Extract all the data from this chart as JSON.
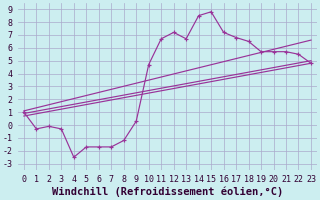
{
  "background_color": "#cceef0",
  "grid_color": "#aaaacc",
  "line_color": "#993399",
  "xlabel": "Windchill (Refroidissement éolien,°C)",
  "xlim": [
    -0.5,
    23.5
  ],
  "ylim": [
    -3.5,
    9.5
  ],
  "xtick_labels": [
    "0",
    "1",
    "2",
    "3",
    "4",
    "5",
    "6",
    "7",
    "8",
    "9",
    "10",
    "11",
    "12",
    "13",
    "14",
    "15",
    "16",
    "17",
    "18",
    "19",
    "20",
    "21",
    "22",
    "23"
  ],
  "xtick_vals": [
    0,
    1,
    2,
    3,
    4,
    5,
    6,
    7,
    8,
    9,
    10,
    11,
    12,
    13,
    14,
    15,
    16,
    17,
    18,
    19,
    20,
    21,
    22,
    23
  ],
  "ytick_vals": [
    -3,
    -2,
    -1,
    0,
    1,
    2,
    3,
    4,
    5,
    6,
    7,
    8,
    9
  ],
  "curve1_x": [
    0,
    1,
    2,
    3,
    4,
    5,
    6,
    7,
    8,
    9,
    10,
    11,
    12,
    13,
    14,
    15,
    16,
    17,
    18,
    19,
    20,
    21,
    22,
    23
  ],
  "curve1_y": [
    1.0,
    -0.3,
    -0.1,
    -0.3,
    -2.5,
    -1.7,
    -1.7,
    -1.7,
    -1.2,
    0.3,
    4.7,
    6.7,
    7.2,
    6.7,
    8.5,
    8.8,
    7.2,
    6.8,
    6.5,
    5.7,
    5.7,
    5.7,
    5.5,
    4.8
  ],
  "line1_x": [
    0,
    23
  ],
  "line1_y": [
    1.1,
    6.6
  ],
  "line2_x": [
    0,
    23
  ],
  "line2_y": [
    0.9,
    5.0
  ],
  "line3_x": [
    0,
    23
  ],
  "line3_y": [
    0.7,
    4.8
  ],
  "tick_fontsize": 6,
  "xlabel_fontsize": 7.5
}
